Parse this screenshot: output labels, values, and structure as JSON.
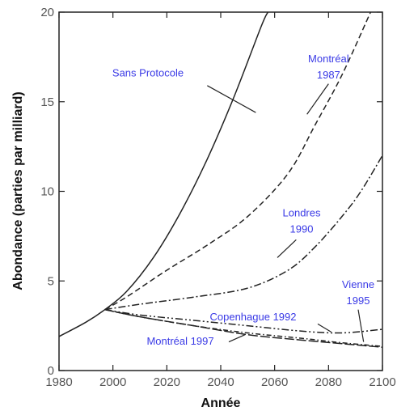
{
  "chart_data": {
    "type": "line",
    "xlabel": "Année",
    "ylabel": "Abondance (parties par milliard)",
    "xlim": [
      1980,
      2100
    ],
    "ylim": [
      0,
      20
    ],
    "x_ticks": [
      1980,
      2000,
      2020,
      2040,
      2060,
      2080,
      2100
    ],
    "y_ticks": [
      0,
      5,
      10,
      15,
      20
    ],
    "grid": false,
    "legend": "none",
    "series": [
      {
        "name": "Sans Protocole",
        "dash": "solid",
        "x": [
          1980,
          1990,
          1997,
          2005,
          2015,
          2025,
          2035,
          2045,
          2055,
          2057.5
        ],
        "y": [
          1.9,
          2.7,
          3.4,
          4.4,
          6.3,
          8.8,
          11.8,
          15.3,
          19.2,
          20
        ]
      },
      {
        "name": "Montréal 1987",
        "dash": "dashed",
        "x": [
          1997,
          2005,
          2020,
          2035,
          2050,
          2065,
          2075,
          2085,
          2095,
          2100
        ],
        "y": [
          3.4,
          4.1,
          5.6,
          7.0,
          8.6,
          11.0,
          13.7,
          16.5,
          19.8,
          21.5
        ]
      },
      {
        "name": "Londres 1990",
        "dash": "dashdot",
        "x": [
          1997,
          2010,
          2030,
          2050,
          2065,
          2075,
          2085,
          2092,
          2100
        ],
        "y": [
          3.4,
          3.7,
          4.1,
          4.6,
          5.6,
          6.9,
          8.6,
          10.0,
          12.0
        ]
      },
      {
        "name": "Vienne 1995",
        "dash": "dashdotdot",
        "x": [
          1997,
          2010,
          2030,
          2050,
          2070,
          2085,
          2100
        ],
        "y": [
          3.4,
          3.1,
          2.8,
          2.5,
          2.2,
          2.1,
          2.3
        ]
      },
      {
        "name": "Copenhague 1992",
        "dash": "dashdot2",
        "x": [
          1997,
          2010,
          2030,
          2050,
          2070,
          2085,
          2100
        ],
        "y": [
          3.4,
          3.0,
          2.5,
          2.1,
          1.8,
          1.55,
          1.35
        ]
      },
      {
        "name": "Montréal 1997",
        "dash": "longdash",
        "x": [
          1997,
          2010,
          2030,
          2050,
          2070,
          2085,
          2100
        ],
        "y": [
          3.4,
          3.0,
          2.5,
          2.0,
          1.7,
          1.5,
          1.3
        ]
      }
    ],
    "annotations": [
      {
        "text": "Sans Protocole",
        "x": 2013,
        "y": 16.4,
        "lines": [
          "Sans Protocole"
        ],
        "leader": [
          [
            2035,
            15.9
          ],
          [
            2053,
            14.4
          ]
        ]
      },
      {
        "text": "Montréal 1987",
        "x": 2080,
        "y": 17.2,
        "lines": [
          "Montréal",
          "1987"
        ],
        "leader": [
          [
            2080,
            16.0
          ],
          [
            2072,
            14.3
          ]
        ]
      },
      {
        "text": "Londres 1990",
        "x": 2070,
        "y": 8.6,
        "lines": [
          "Londres",
          "1990"
        ],
        "leader": [
          [
            2068,
            7.3
          ],
          [
            2061,
            6.3
          ]
        ]
      },
      {
        "text": "Vienne 1995",
        "x": 2091,
        "y": 4.6,
        "lines": [
          "Vienne",
          "1995"
        ],
        "leader": [
          [
            2091,
            3.4
          ],
          [
            2093,
            1.6
          ]
        ]
      },
      {
        "text": "Copenhague 1992",
        "x": 2052,
        "y": 2.8,
        "lines": [
          "Copenhague 1992"
        ],
        "leader": [
          [
            2076,
            2.6
          ],
          [
            2081,
            2.15
          ]
        ]
      },
      {
        "text": "Montréal 1997",
        "x": 2025,
        "y": 1.45,
        "lines": [
          "Montréal 1997"
        ],
        "leader": [
          [
            2043,
            1.6
          ],
          [
            2049,
            2.0
          ]
        ]
      }
    ]
  },
  "colors": {
    "line": "#222222",
    "annotation": "#3a3ae6",
    "tick_text": "#555555"
  }
}
